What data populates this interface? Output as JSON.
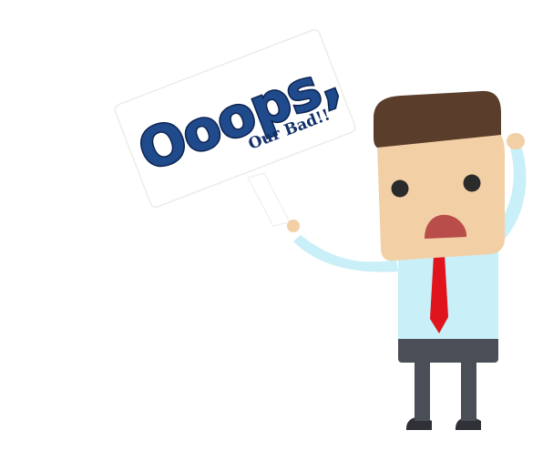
{
  "sign": {
    "title": "Ooops,",
    "subtitle": "Our Bad!!"
  },
  "colors": {
    "text_blue": "#1f4a8c",
    "hair": "#5a3e2b",
    "skin": "#f2cfa5",
    "shirt": "#c9eff8",
    "tie": "#e0141c",
    "pants": "#4a4e57",
    "shoes": "#2f3137",
    "mouth": "#b84d4a"
  },
  "icons": [
    "cartoon-man-icon",
    "signboard-icon"
  ]
}
